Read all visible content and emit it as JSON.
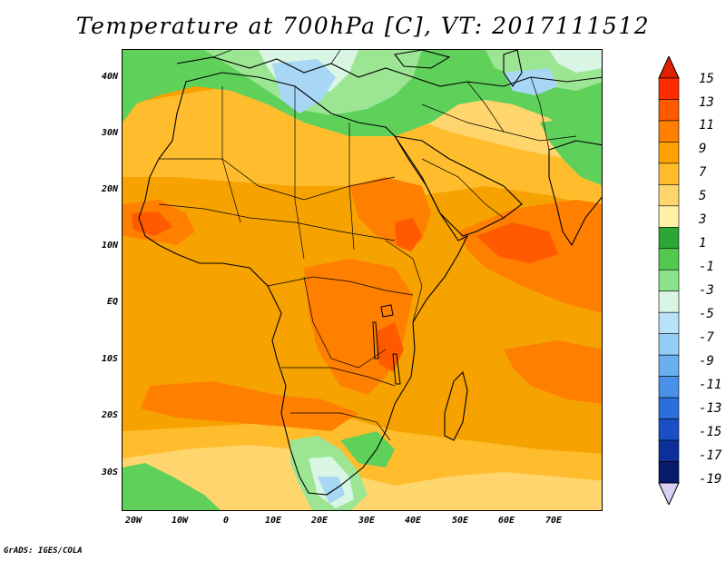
{
  "title": "Temperature at 700hPa [C], VT: 2017111512",
  "credit": "GrADS: IGES/COLA",
  "map": {
    "lon_range": [
      -23,
      80
    ],
    "lat_range": [
      -37,
      45
    ],
    "lat_labels": [
      "40N",
      "30N",
      "20N",
      "10N",
      "EQ",
      "10S",
      "20S",
      "30S"
    ],
    "lon_labels": [
      "20W",
      "10W",
      "0",
      "10E",
      "20E",
      "30E",
      "40E",
      "50E",
      "60E",
      "70E"
    ]
  },
  "colorbar": {
    "labels": [
      "15",
      "13",
      "11",
      "9",
      "7",
      "5",
      "3",
      "1",
      "-1",
      "-3",
      "-5",
      "-7",
      "-9",
      "-11",
      "-13",
      "-15",
      "-17",
      "-19"
    ],
    "colors_top_to_bottom": [
      "#ff2a00",
      "#ff5a00",
      "#ff7f00",
      "#ffa100",
      "#ffbd2e",
      "#ffd66e",
      "#fff0a6",
      "#2ca635",
      "#52c84e",
      "#8ae38a",
      "#d8f6e3",
      "#b8e2f8",
      "#94cdf5",
      "#6aaff0",
      "#4a90e8",
      "#2c6fdc",
      "#1a4fc8",
      "#0d2f9a",
      "#0a1a6a"
    ],
    "top_arrow_color": "#e02000",
    "bottom_arrow_color": "#d8d0f4"
  },
  "field": {
    "colors": {
      "green": "#5fd05a",
      "light_green": "#9ce693",
      "pale_cyan": "#d8f6e3",
      "light_blue": "#a8d6f5",
      "yellow": "#ffd66e",
      "light_orange": "#ffbd2e",
      "orange": "#f6a200",
      "dark_orange": "#ff7f00",
      "red_orange": "#ff5a00"
    }
  }
}
